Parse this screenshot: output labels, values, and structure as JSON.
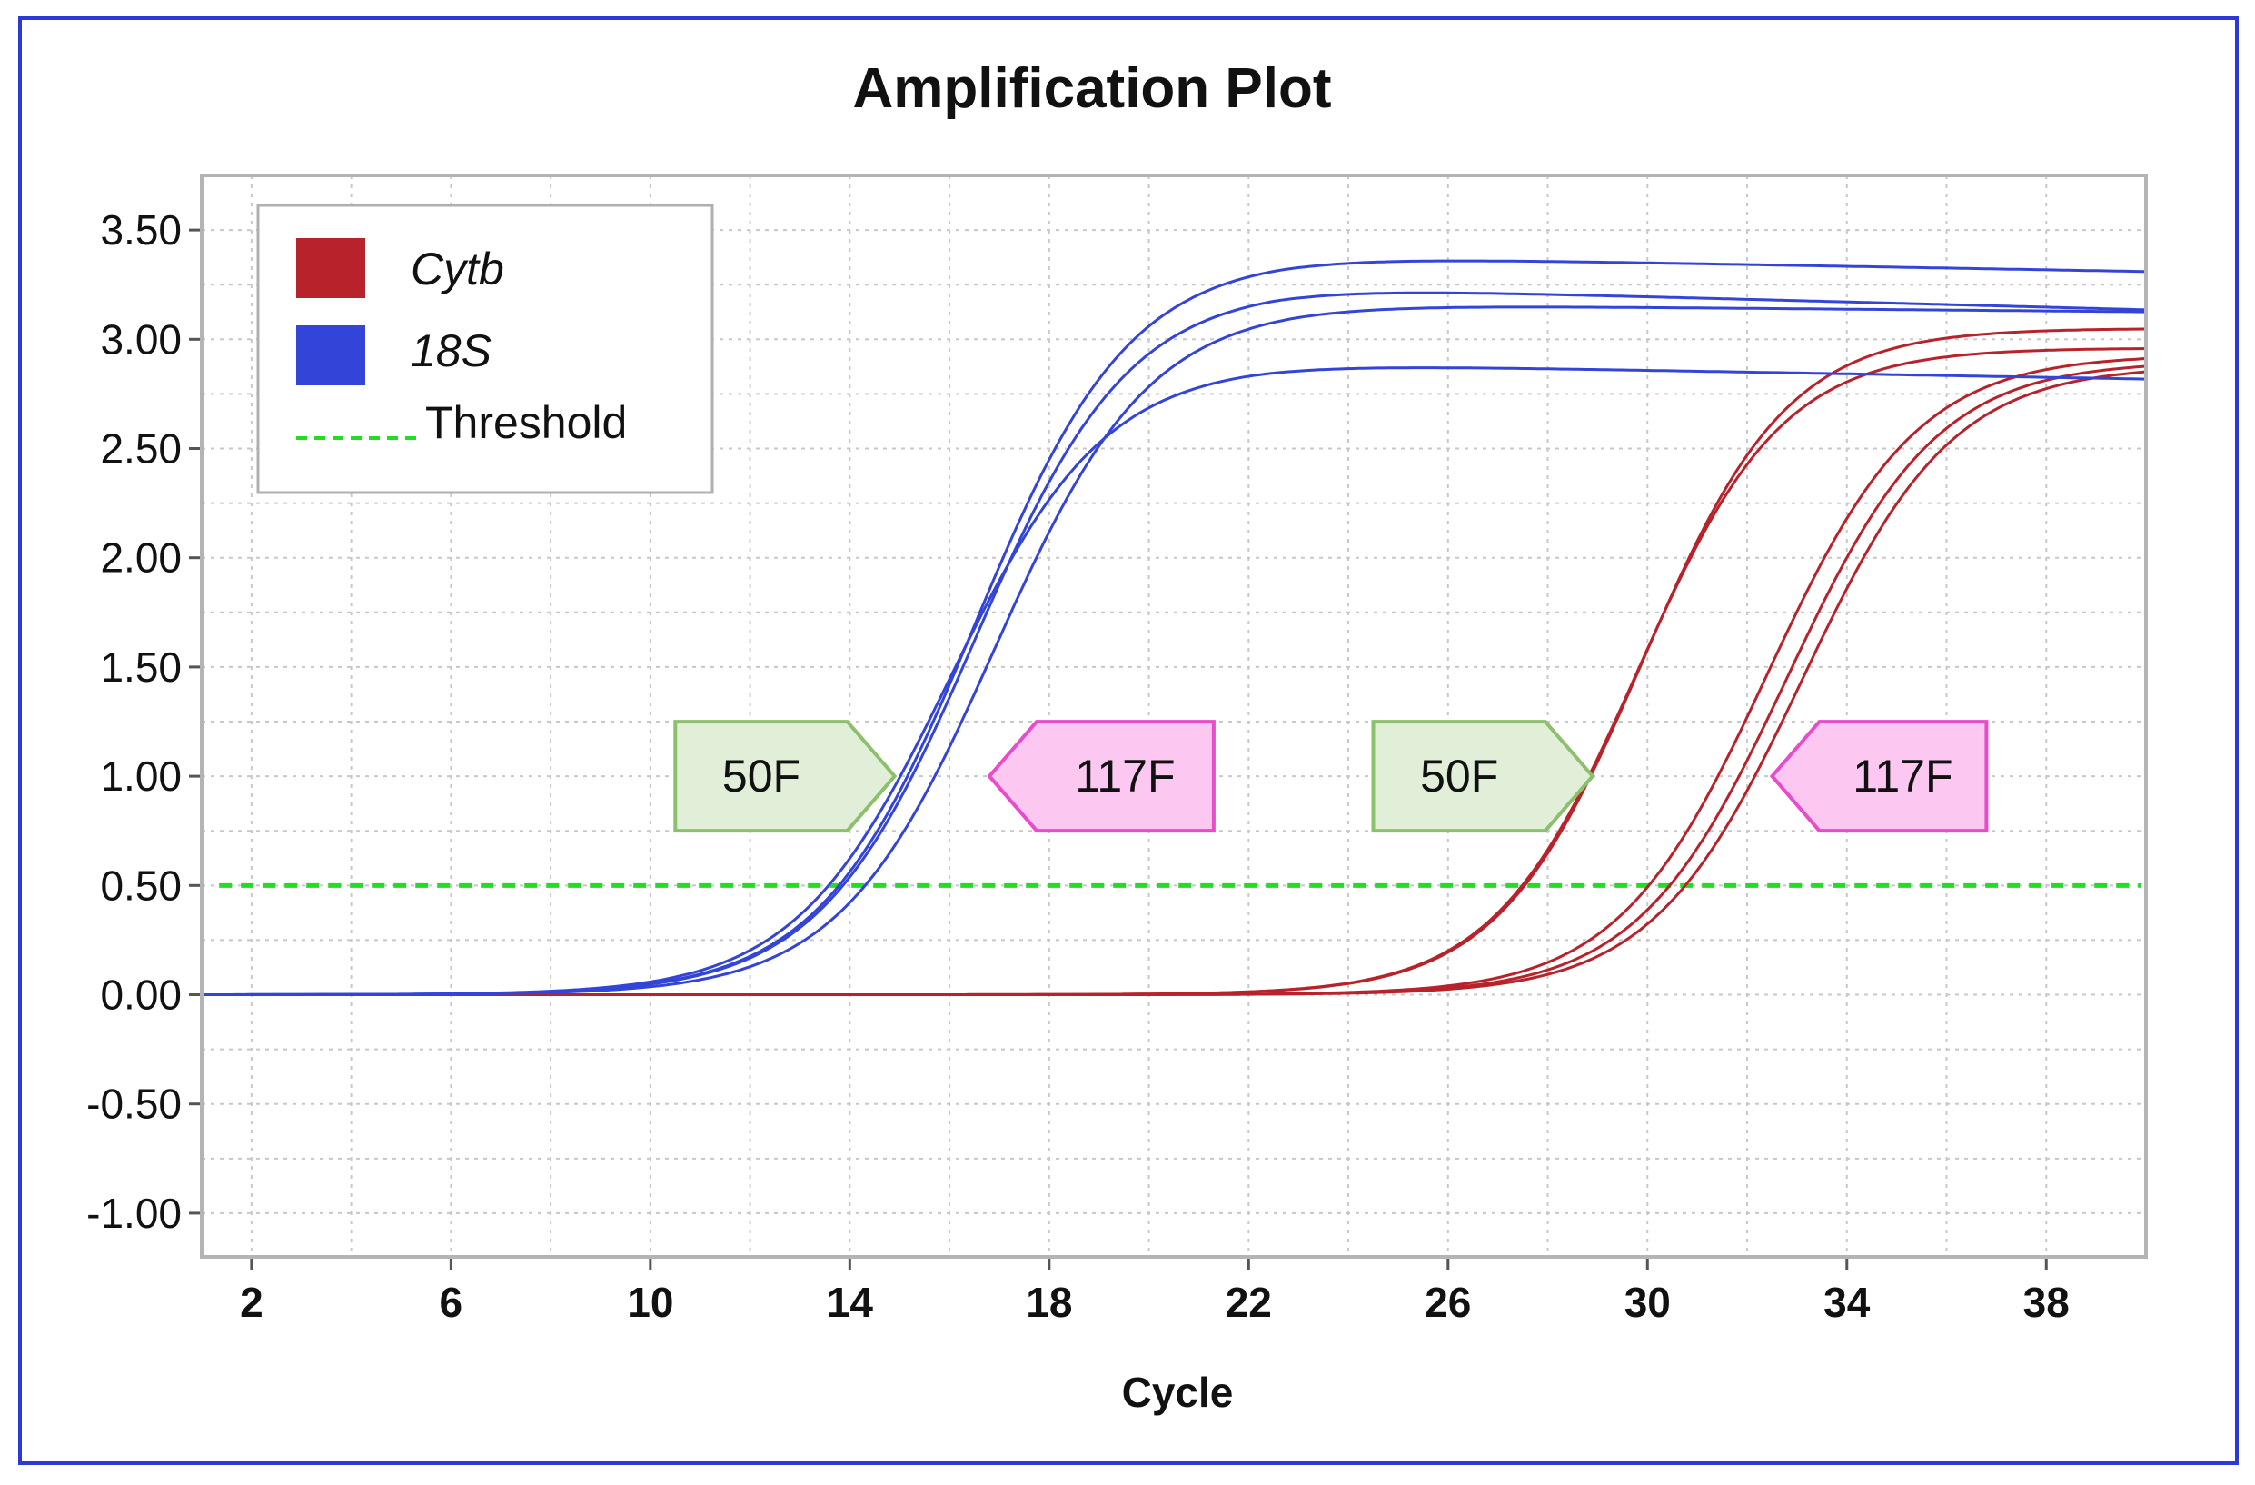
{
  "colors": {
    "frame": "#2b3ad6",
    "cytb": "#b8232b",
    "s18": "#3344d8",
    "threshold": "#22dd22",
    "grid": "#c8c8c8",
    "plot_border": "#b4b4b4",
    "tag_green_fill": "#e1efd8",
    "tag_green_stroke": "#8cc06c",
    "tag_pink_fill": "#fcc8f2",
    "tag_pink_stroke": "#e84cc8"
  },
  "chart_data": {
    "type": "line",
    "title": "Amplification Plot",
    "xlabel": "Cycle",
    "ylabel": "",
    "xlim": [
      1,
      40
    ],
    "ylim": [
      -1.2,
      3.75
    ],
    "x_ticks": [
      2,
      6,
      10,
      14,
      18,
      22,
      26,
      30,
      34,
      38
    ],
    "x_tick_labels": [
      "2",
      "6",
      "10",
      "14",
      "18",
      "22",
      "26",
      "30",
      "34",
      "38"
    ],
    "y_ticks": [
      -1.0,
      -0.5,
      0.0,
      0.5,
      1.0,
      1.5,
      2.0,
      2.5,
      3.0,
      3.5
    ],
    "y_tick_labels": [
      "-1.00",
      "-0.50",
      "0.00",
      "0.50",
      "1.00",
      "1.50",
      "2.00",
      "2.50",
      "3.00",
      "3.50"
    ],
    "grid": true,
    "legend": {
      "position": "top-left",
      "entries": [
        {
          "label": "Cytb",
          "style": "swatch",
          "color": "#b8232b",
          "italic": true
        },
        {
          "label": "18S",
          "style": "swatch",
          "color": "#3344d8",
          "italic": true
        },
        {
          "label": "Threshold",
          "style": "dashed",
          "color": "#22dd22",
          "italic": false
        }
      ]
    },
    "threshold": 0.5,
    "series": [
      {
        "name": "18S",
        "group": "18S",
        "color": "#3344d8",
        "plateau": 3.38,
        "midpoint": 16.5,
        "slope": 1.55,
        "drift": -0.004
      },
      {
        "name": "18S",
        "group": "18S",
        "color": "#3344d8",
        "plateau": 3.24,
        "midpoint": 16.5,
        "slope": 1.55,
        "drift": -0.006
      },
      {
        "name": "18S",
        "group": "18S",
        "color": "#3344d8",
        "plateau": 3.16,
        "midpoint": 16.9,
        "slope": 1.55,
        "drift": -0.002
      },
      {
        "name": "18S",
        "group": "18S",
        "color": "#3344d8",
        "plateau": 2.89,
        "midpoint": 16.0,
        "slope": 1.55,
        "drift": -0.004
      },
      {
        "name": "Cytb",
        "group": "Cytb",
        "color": "#b8232b",
        "plateau": 3.05,
        "midpoint": 29.9,
        "slope": 1.45,
        "drift": 0
      },
      {
        "name": "Cytb",
        "group": "Cytb",
        "color": "#b8232b",
        "plateau": 2.96,
        "midpoint": 29.8,
        "slope": 1.45,
        "drift": 0
      },
      {
        "name": "Cytb",
        "group": "Cytb",
        "color": "#b8232b",
        "plateau": 2.93,
        "midpoint": 32.4,
        "slope": 1.5,
        "drift": 0
      },
      {
        "name": "Cytb",
        "group": "Cytb",
        "color": "#b8232b",
        "plateau": 2.9,
        "midpoint": 32.8,
        "slope": 1.5,
        "drift": 0
      },
      {
        "name": "Cytb",
        "group": "Cytb",
        "color": "#b8232b",
        "plateau": 2.88,
        "midpoint": 33.1,
        "slope": 1.5,
        "drift": 0
      }
    ],
    "annotations": [
      {
        "label": "50F",
        "shape": "arrow-right",
        "color": "green",
        "x_start": 10.5,
        "x_end": 14.9,
        "y_center": 1.0
      },
      {
        "label": "117F",
        "shape": "arrow-left",
        "color": "pink",
        "x_start": 16.8,
        "x_end": 21.3,
        "y_center": 1.0
      },
      {
        "label": "50F",
        "shape": "arrow-right",
        "color": "green",
        "x_start": 24.5,
        "x_end": 28.9,
        "y_center": 1.0
      },
      {
        "label": "117F",
        "shape": "arrow-left",
        "color": "pink",
        "x_start": 32.5,
        "x_end": 36.8,
        "y_center": 1.0
      }
    ]
  }
}
